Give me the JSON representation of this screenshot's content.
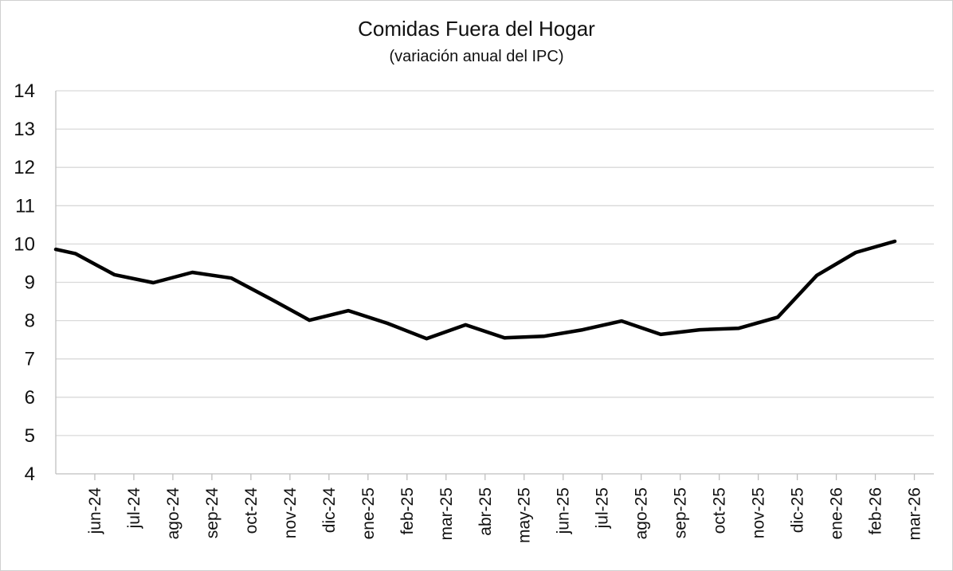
{
  "chart_data": {
    "type": "line",
    "title": "Comidas Fuera del Hogar",
    "subtitle": "(variación anual del IPC)",
    "xlabel": "",
    "ylabel": "",
    "ylim": [
      4,
      14
    ],
    "yticks": [
      4,
      5,
      6,
      7,
      8,
      9,
      10,
      11,
      12,
      13,
      14
    ],
    "grid": true,
    "legend": "none",
    "categories": [
      "jun-24",
      "jul-24",
      "ago-24",
      "sep-24",
      "oct-24",
      "nov-24",
      "dic-24",
      "ene-25",
      "feb-25",
      "mar-25",
      "abr-25",
      "may-25",
      "jun-25",
      "jul-25",
      "ago-25",
      "sep-25",
      "oct-25",
      "nov-25",
      "dic-25",
      "ene-26",
      "feb-26",
      "mar-26"
    ],
    "series": [
      {
        "color": "#000000",
        "points": [
          {
            "x": "may-24",
            "y": 9.86
          },
          {
            "x": "jun-24",
            "y": 9.75
          },
          {
            "x": "jul-24",
            "y": 9.2
          },
          {
            "x": "ago-24",
            "y": 8.99
          },
          {
            "x": "sep-24",
            "y": 9.26
          },
          {
            "x": "oct-24",
            "y": 9.11
          },
          {
            "x": "nov-24",
            "y": 8.57
          },
          {
            "x": "dic-24",
            "y": 8.01
          },
          {
            "x": "ene-25",
            "y": 8.26
          },
          {
            "x": "feb-25",
            "y": 7.93
          },
          {
            "x": "mar-25",
            "y": 7.53
          },
          {
            "x": "abr-25",
            "y": 7.89
          },
          {
            "x": "may-25",
            "y": 7.55
          },
          {
            "x": "jun-25",
            "y": 7.59
          },
          {
            "x": "jul-25",
            "y": 7.76
          },
          {
            "x": "ago-25",
            "y": 7.99
          },
          {
            "x": "sep-25",
            "y": 7.64
          },
          {
            "x": "oct-25",
            "y": 7.76
          },
          {
            "x": "nov-25",
            "y": 7.8
          },
          {
            "x": "dic-25",
            "y": 8.09
          },
          {
            "x": "ene-26",
            "y": 9.18
          },
          {
            "x": "feb-26",
            "y": 9.78
          },
          {
            "x": "mar-26",
            "y": 10.07
          }
        ]
      }
    ]
  }
}
